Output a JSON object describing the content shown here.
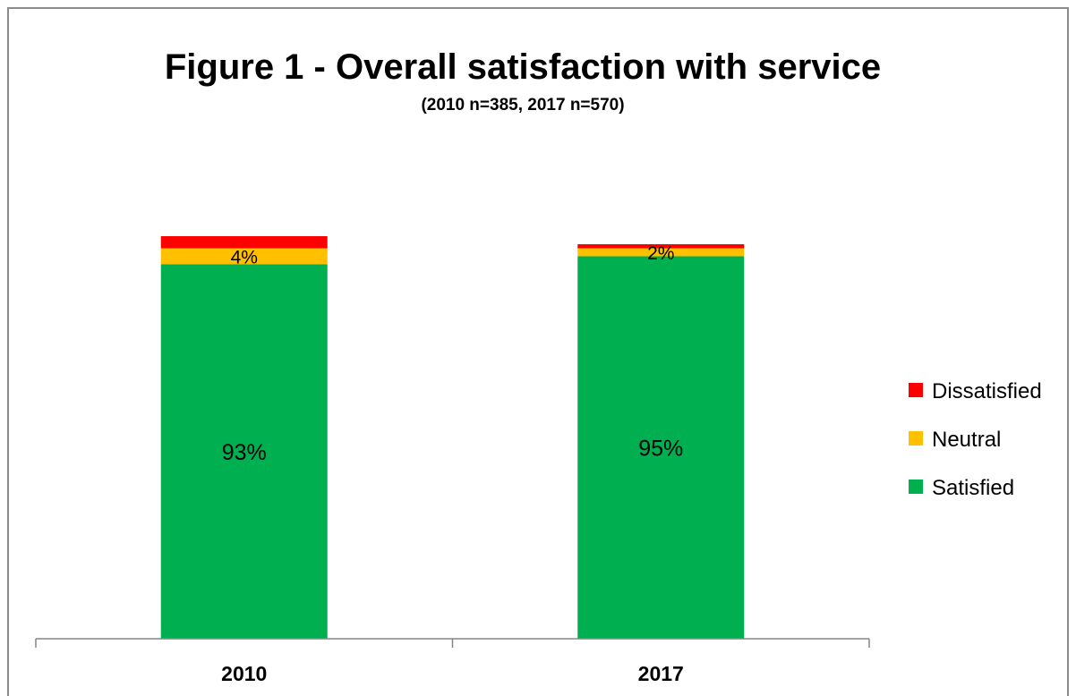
{
  "chart_data": {
    "type": "bar",
    "stacked": true,
    "title": "Figure 1 - Overall satisfaction with service",
    "subtitle": "(2010 n=385, 2017 n=570)",
    "categories": [
      "2010",
      "2017"
    ],
    "series": [
      {
        "name": "Satisfied",
        "color": "#00b050",
        "values": [
          93,
          95
        ]
      },
      {
        "name": "Neutral",
        "color": "#ffc000",
        "values": [
          4,
          2
        ]
      },
      {
        "name": "Dissatisfied",
        "color": "#ff0000",
        "values": [
          3,
          1
        ]
      }
    ],
    "data_labels": [
      {
        "series": "Satisfied",
        "texts": [
          "93%",
          "95%"
        ]
      },
      {
        "series": "Neutral",
        "texts": [
          "4%",
          "2%"
        ]
      }
    ],
    "ylim": [
      0,
      100
    ],
    "y_axis_visible": false,
    "grid": false,
    "legend_position": "right",
    "legend_order": [
      "Dissatisfied",
      "Neutral",
      "Satisfied"
    ]
  }
}
